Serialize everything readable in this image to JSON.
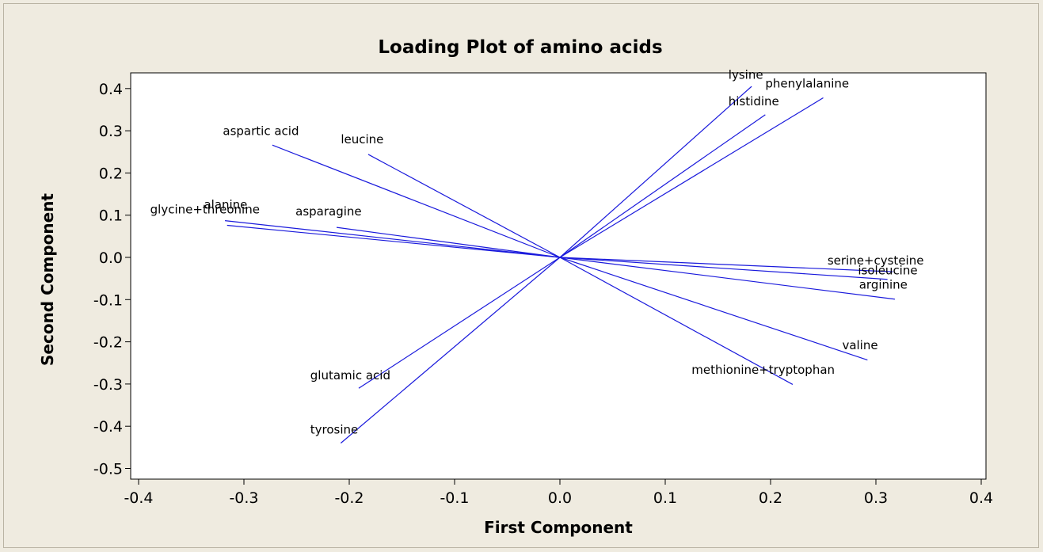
{
  "chart_data": {
    "type": "line",
    "title": "Loading Plot of amino acids",
    "xlabel": "First Component",
    "ylabel": "Second Component",
    "xlim": [
      -0.4,
      0.4
    ],
    "ylim": [
      -0.5,
      0.4
    ],
    "xticks": [
      -0.4,
      -0.3,
      -0.2,
      -0.1,
      0.0,
      0.1,
      0.2,
      0.3,
      0.4
    ],
    "xtick_labels": [
      "-0.4",
      "-0.3",
      "-0.2",
      "-0.1",
      "0.0",
      "0.1",
      "0.2",
      "0.3",
      "0.4"
    ],
    "yticks": [
      0.4,
      0.3,
      0.2,
      0.1,
      0.0,
      -0.1,
      -0.2,
      -0.3,
      -0.4,
      -0.5
    ],
    "ytick_labels": [
      "0.4",
      "0.3",
      "0.2",
      "0.1",
      "0.0",
      "-0.1",
      "-0.2",
      "-0.3",
      "-0.4",
      "-0.5"
    ],
    "grid": false,
    "line_color": "#1a1adc",
    "vectors": [
      {
        "label": "lysine",
        "x": 0.182,
        "y": 0.405,
        "lx": 0.16,
        "ly": 0.423
      },
      {
        "label": "phenylalanine",
        "x": 0.25,
        "y": 0.378,
        "lx": 0.195,
        "ly": 0.402
      },
      {
        "label": "histidine",
        "x": 0.195,
        "y": 0.338,
        "lx": 0.16,
        "ly": 0.36
      },
      {
        "label": "aspartic acid",
        "x": -0.273,
        "y": 0.266,
        "lx": -0.32,
        "ly": 0.29
      },
      {
        "label": "leucine",
        "x": -0.182,
        "y": 0.244,
        "lx": -0.208,
        "ly": 0.27
      },
      {
        "label": "alanine",
        "x": -0.318,
        "y": 0.087,
        "lx": -0.338,
        "ly": 0.115
      },
      {
        "label": "glycine+threonine",
        "x": -0.316,
        "y": 0.076,
        "lx": -0.389,
        "ly": 0.104
      },
      {
        "label": "asparagine",
        "x": -0.212,
        "y": 0.071,
        "lx": -0.251,
        "ly": 0.099
      },
      {
        "label": "serine+cysteine",
        "x": 0.316,
        "y": -0.034,
        "lx": 0.254,
        "ly": -0.017
      },
      {
        "label": "isoleucine",
        "x": 0.311,
        "y": -0.052,
        "lx": 0.283,
        "ly": -0.04
      },
      {
        "label": "arginine",
        "x": 0.318,
        "y": -0.099,
        "lx": 0.284,
        "ly": -0.074
      },
      {
        "label": "valine",
        "x": 0.292,
        "y": -0.243,
        "lx": 0.268,
        "ly": -0.218
      },
      {
        "label": "methionine+tryptophan",
        "x": 0.221,
        "y": -0.301,
        "lx": 0.125,
        "ly": -0.276
      },
      {
        "label": "glutamic acid",
        "x": -0.191,
        "y": -0.31,
        "lx": -0.237,
        "ly": -0.289
      },
      {
        "label": "tyrosine",
        "x": -0.208,
        "y": -0.44,
        "lx": -0.237,
        "ly": -0.417
      }
    ]
  }
}
